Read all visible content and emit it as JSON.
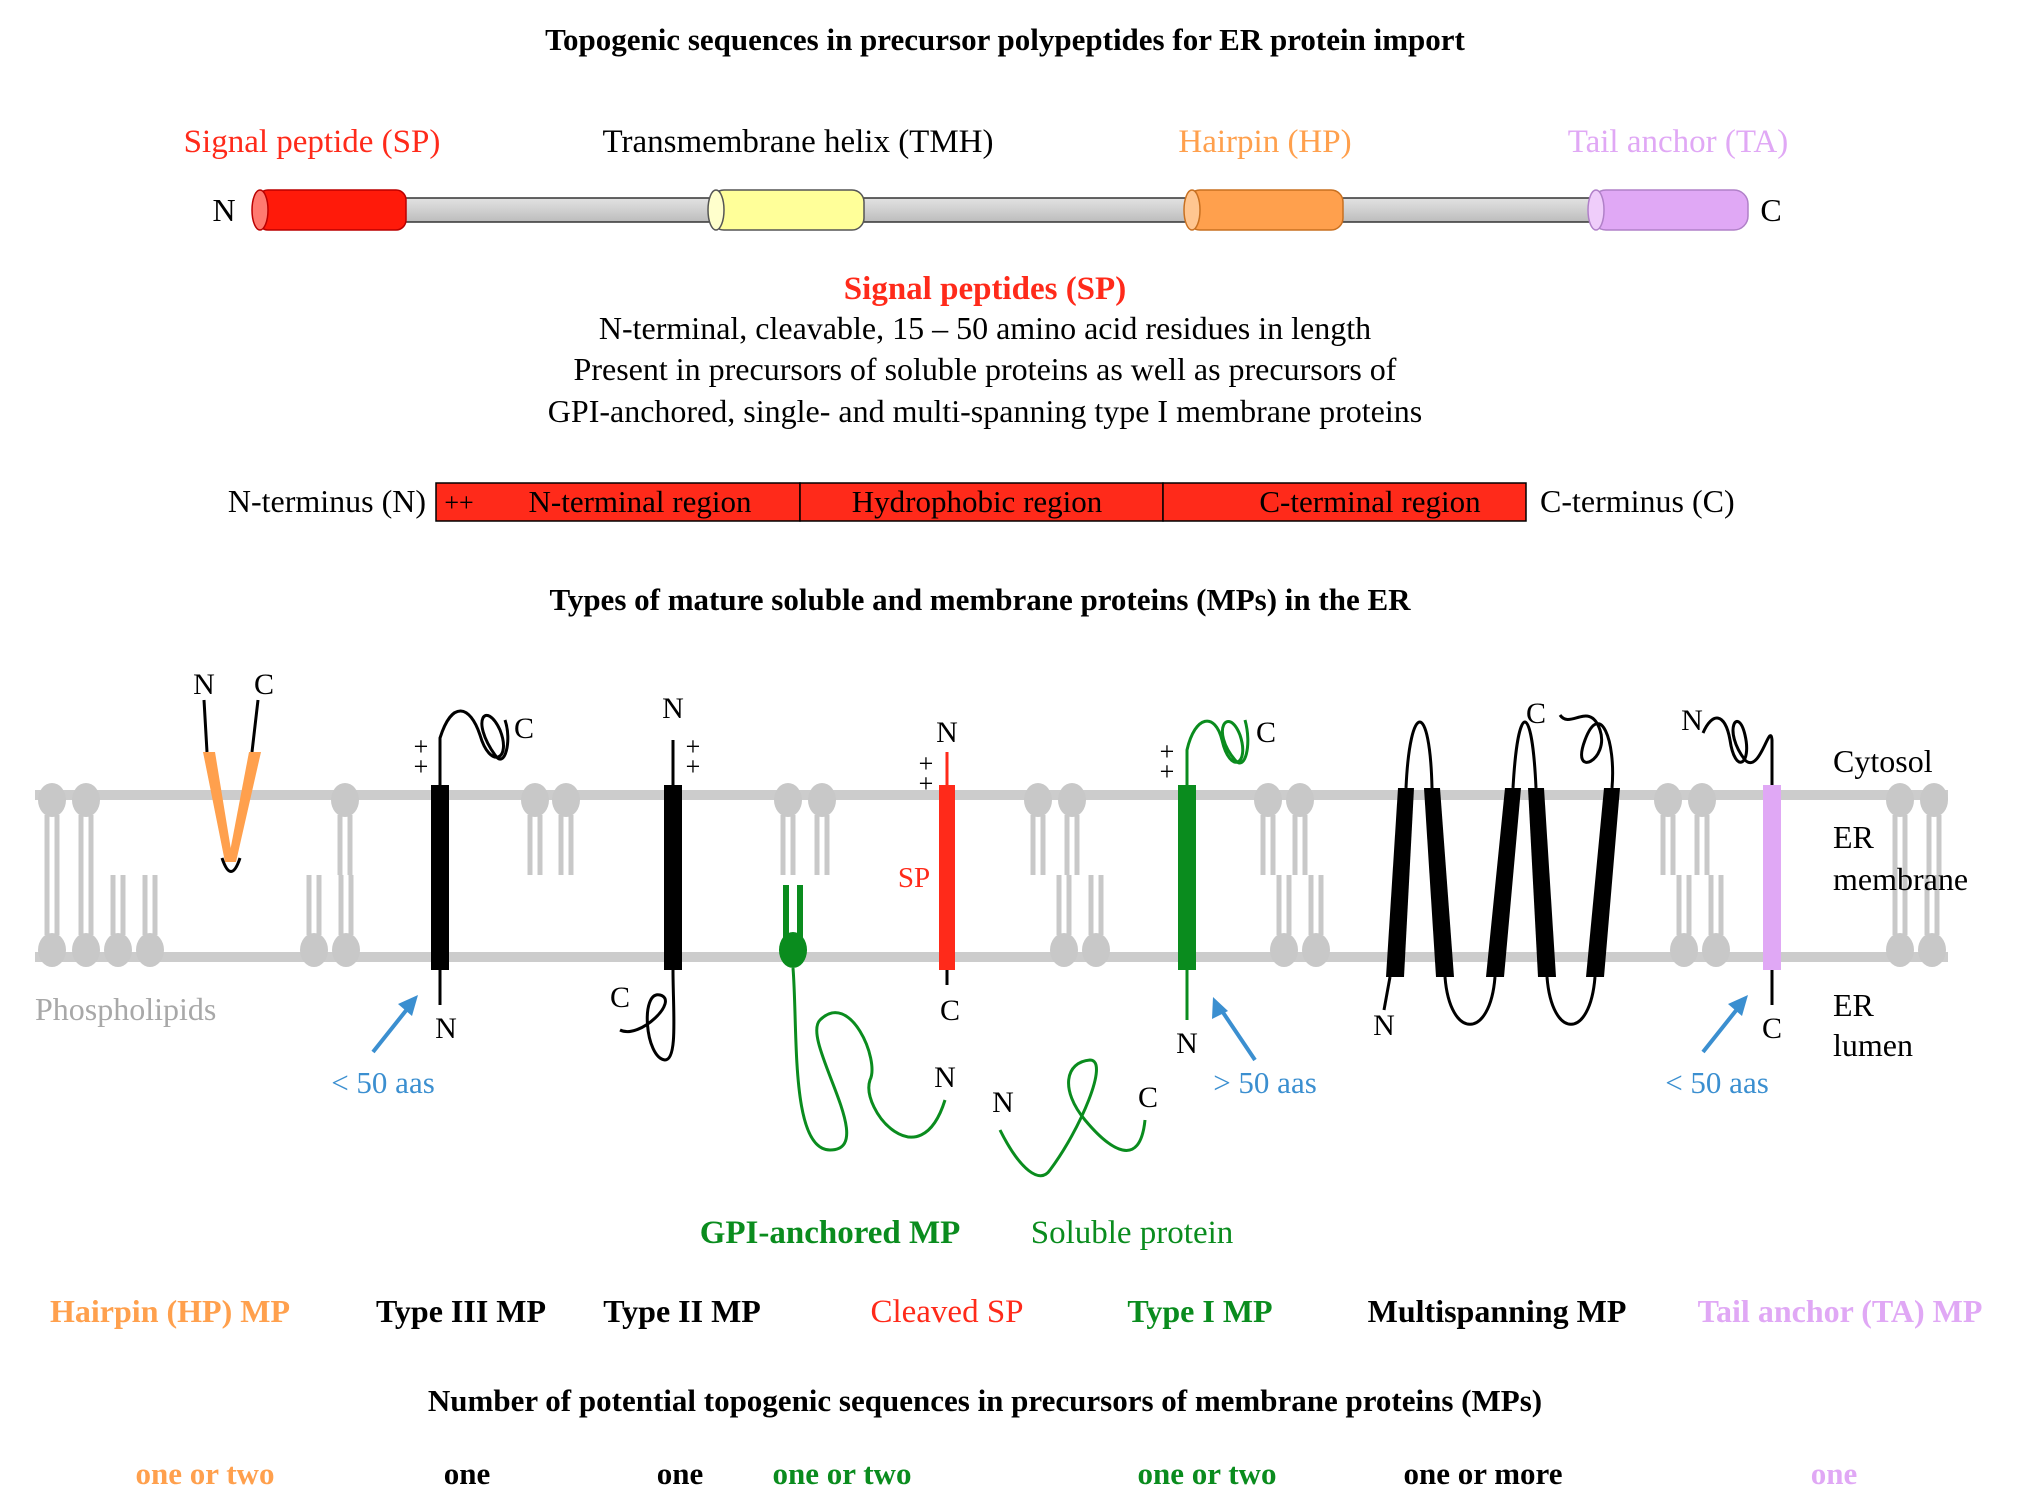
{
  "colors": {
    "signal_peptide": "#ff2a1a",
    "tmh": "#ffff99",
    "hairpin": "#ffa04d",
    "tail_anchor": "#e0a8f5",
    "green": "#0a8c1e",
    "black": "#000000",
    "lipid": "#c8c8c8",
    "blue": "#3b8fd0",
    "gray_text": "#a8a8a8"
  },
  "section1": {
    "title": "Topogenic sequences in precursor polypeptides for ER protein import",
    "labels": {
      "sp": "Signal peptide (SP)",
      "tmh": "Transmembrane helix (TMH)",
      "hp": "Hairpin (HP)",
      "ta": "Tail anchor (TA)"
    },
    "n_end": "N",
    "c_end": "C"
  },
  "section2": {
    "title": "Signal peptides (SP)",
    "lines": [
      "N-terminal, cleavable, 15 – 50 amino acid residues in length",
      "Present in precursors of soluble proteins as well as precursors of",
      "GPI-anchored, single- and multi-spanning type I membrane proteins"
    ],
    "n_terminus": "N-terminus (N)",
    "c_terminus": "C-terminus (C)",
    "plus_plus": "++",
    "regions": [
      "N-terminal region",
      "Hydrophobic region",
      "C-terminal region"
    ]
  },
  "section3": {
    "title": "Types of mature soluble and membrane proteins (MPs) in the ER",
    "right_labels": {
      "cytosol": "Cytosol",
      "er_membrane_1": "ER",
      "er_membrane_2": "membrane",
      "er_lumen_1": "ER",
      "er_lumen_2": "lumen"
    },
    "phospholipids": "Phospholipids",
    "sp_label": "SP",
    "short_50_left": "< 50 aas",
    "long_50": "> 50 aas",
    "short_50_right": "< 50 aas",
    "gpi_label": "GPI-anchored MP",
    "soluble_label": "Soluble protein",
    "termini": {
      "N": "N",
      "C": "C",
      "plus": "+"
    }
  },
  "protein_types": [
    {
      "label": "Hairpin (HP) MP",
      "color": "#ffa04d"
    },
    {
      "label": "Type III MP",
      "color": "#000000"
    },
    {
      "label": "Type II MP",
      "color": "#000000"
    },
    {
      "label": "Cleaved SP",
      "color": "#ff2a1a"
    },
    {
      "label": "Type I MP",
      "color": "#0a8c1e"
    },
    {
      "label": "Multispanning MP",
      "color": "#000000"
    },
    {
      "label": "Tail anchor (TA) MP",
      "color": "#e0a8f5"
    }
  ],
  "section4": {
    "title": "Number of potential topogenic sequences in precursors of membrane proteins (MPs)",
    "counts": [
      {
        "label": "one or two",
        "color": "#ffa04d"
      },
      {
        "label": "one",
        "color": "#000000"
      },
      {
        "label": "one",
        "color": "#000000"
      },
      {
        "label": "one or two",
        "color": "#0a8c1e"
      },
      {
        "label": "one or two",
        "color": "#0a8c1e"
      },
      {
        "label": "one or more",
        "color": "#000000"
      },
      {
        "label": "one",
        "color": "#e0a8f5"
      }
    ]
  }
}
